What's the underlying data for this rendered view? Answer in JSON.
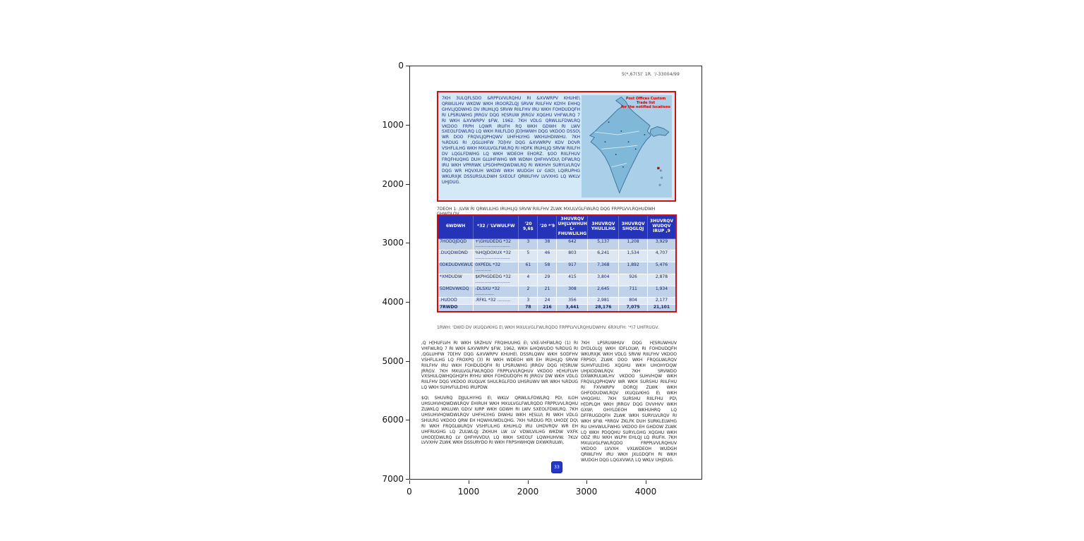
{
  "figure": {
    "yticks": [
      "0",
      "1000",
      "2000",
      "3000",
      "4000",
      "5000",
      "6000",
      "7000"
    ],
    "xticks": [
      "0",
      "1000",
      "2000",
      "3000",
      "4000"
    ]
  },
  "colors": {
    "accent_red": "#cc1111",
    "table_header_blue": "#2433b8",
    "row_blue_dark": "#bfd2ea",
    "row_blue_light": "#dde7f4",
    "notice_bg": "#d3e9f8",
    "map_sea": "#a9d0e8",
    "map_land": "#7fb8d9",
    "stamp_blue": "#2438c8"
  },
  "page": {
    "header_right": "5(*,67(5(' 1R. '/-33004/99",
    "notice_box": {
      "text": "7KH 3ULQFLSDO &RPPLVVLRQHU RI &XVWRPV KHUHE\\ QRWLILHV WKDW WKH IROORZLQJ SRVW RIILFHV KDYH EHHQ GHVLJQDWHG DV IRUHLJQ SRVW RIILFHV IRU WKH FOHDUDQFH RI LPSRUWHG JRRGV DQG H[SRUW JRRGV XQGHU VHFWLRQ 7 RI WKH &XVWRPV $FW, 1962. 7KH VDLG QRWLILFDWLRQ VKDOO FRPH LQWR IRUFH RQ WKH GDWH RI LWV SXEOLFDWLRQ LQ WKH RIILFLDO JD]HWWH DQG VKDOO DSSO\\ WR DOO FRQVLJQPHQWV UHFHLYHG WKHUHDIWHU. 7KH %RDUG RI ,QGLUHFW 7D[HV DQG &XVWRPV KDV DOVR VSHFLILHG WKH MXULVGLFWLRQ RI HDFK IRUHLJQ SRVW RIILFH DV LQGLFDWHG LQ WKH WDEOH EHORZ. $OO RIILFHUV FRQFHUQHG DUH GLUHFWHG WR WDNH QHFHVVDU\\ DFWLRQ IRU WKH VPRRWK LPSOHPHQWDWLRQ RI WKHVH SURYLVLRQV DQG WR HQVXUH WKDW WKH WUDGH LV GXO\\ LQIRUPHG WKURXJK DSSURSULDWH SXEOLF QRWLFHV LVVXHG LQ WKLV UHJDUG."
    },
    "map": {
      "caption_line1": "Post Offices Custom Trade list",
      "caption_line2": "for the notified locations"
    },
    "table_caption": "7DEOH 1: /LVW RI QRWLILHG IRUHLJQ SRVW RIILFHV ZLWK MXULVGLFWLRQ DQG FRPPLVVLRQHUDWH GHWDLOV",
    "table": {
      "headers": [
        "6WDWH",
        "*32 / 'LVWULFW",
        "'20 9,6$",
        "'20 *'9",
        "3HUVRQV UHJLVWHUHG L-FHUWLILHG",
        "3HUVRQV YHULILHG",
        "3HUVRQV SHQGLQJ",
        "3HUVRQV WUDQV IRUP ,9"
      ],
      "rows": [
        {
          "cells": [
            "7HODQJDQD",
            "+\\GHUDEDG *32 ..........................",
            "3",
            "38",
            "642",
            "5,137",
            "1,208",
            "3,929"
          ],
          "total": false
        },
        {
          "cells": [
            ".DUQDWDND",
            "%HQJDOXUX *32 ..........................",
            "5",
            "46",
            "803",
            "6,241",
            "1,534",
            "4,707"
          ],
          "total": false
        },
        {
          "cells": [
            "0DKDUDVKWUD",
            "0XPEDL *32 ............",
            "61",
            "58",
            "917",
            "7,368",
            "1,892",
            "5,476"
          ],
          "total": false
        },
        {
          "cells": [
            "*XMDUDW",
            "$KPHGDEDG *32 ..........................",
            "4",
            "29",
            "415",
            "3,804",
            "926",
            "2,878"
          ],
          "total": false
        },
        {
          "cells": [
            "5DMDVWKDQ",
            "-DLSXU *32 ..............",
            "2",
            "21",
            "308",
            "2,645",
            "711",
            "1,934"
          ],
          "total": false
        },
        {
          "cells": [
            ".HUDOD",
            ".RFKL *32 ..........",
            "3",
            "24",
            "356",
            "2,981",
            "804",
            "2,177"
          ],
          "total": false
        },
        {
          "cells": [
            "7RWDO",
            "",
            "78",
            "216",
            "3,441",
            "28,176",
            "7,075",
            "21,101"
          ],
          "total": true
        }
      ]
    },
    "table_footnote": "1RWH: 'DWD DV IXUQLVKHG E\\ WKH MXULVGLFWLRQDO FRPPLVVLRQHUDWHV. 6RXUFH: '*)7 UHFRUGV.",
    "body": {
      "left_par1": ",Q H[HUFLVH RI WKH SRZHUV FRQIHUUHG E\\ VXE-VHFWLRQ (1) RI VHFWLRQ 7 RI WKH &XVWRPV $FW, 1962, WKH &HQWUDO %RDUG RI ,QGLUHFW 7D[HV DQG &XVWRPV KHUHE\\ DSSRLQWV WKH SODFHV VSHFLILHG LQ FROXPQ (3) RI WKH WDEOH WR EH IRUHLJQ SRVW RIILFHV IRU WKH FOHDUDQFH RI LPSRUWHG JRRGV DQG H[SRUW JRRGV. 7KH MXULVGLFWLRQDO FRPPLVVLRQHUV VKDOO H[HUFLVH VXSHULQWHQGHQFH RYHU WKH FOHDUDQFH RI JRRGV DW WKH VDLG RIILFHV DQG VKDOO IXUQLVK SHULRGLFDO UHSRUWV WR WKH %RDUG LQ WKH SUHVFULEHG IRUPDW.",
      "left_par2": "$Q\\ SHUVRQ DJJULHYHG E\\ WKLV QRWLILFDWLRQ PD\\ ILOH UHSUHVHQWDWLRQV EHIRUH WKH MXULVGLFWLRQDO FRPPLVVLRQHU ZLWKLQ WKLUW\\ GD\\V IURP WKH GDWH RI LWV SXEOLFDWLRQ. 7KH UHSUHVHQWDWLRQV UHFHLYHG DIWHU WKH H[SLU\\ RI WKH VDLG SHULRG VKDOO QRW EH HQWHUWDLQHG. 7KH %RDUG PD\\ UHOD[ DQ\\ RI WKH FRQGLWLRQV VSHFLILHG KHUHLQ IRU UHDVRQV WR EH UHFRUGHG LQ ZULWLQJ ZKHUH LW LV VDWLVILHG WKDW VXFK UHOD[DWLRQ LV QHFHVVDU\\ LQ WKH SXEOLF LQWHUHVW. 7KLV LVVXHV ZLWK WKH DSSURYDO RI WKH FRPSHWHQW DXWKRULW\\.",
      "right_par": "7KH LPSRUWHUV DQG H[SRUWHUV DYDLOLQJ WKH IDFLOLW\\ RI FOHDUDQFH WKURXJK WKH VDLG SRVW RIILFHV VKDOO FRPSO\\ ZLWK DOO WKH FRQGLWLRQV SUHVFULEHG XQGHU WKH UHOHYDQW UHJXODWLRQV. 7KH SRVWDO DXWKRULWLHV VKDOO SUHVHQW WKH FRQVLJQPHQWV WR WKH SURSHU RIILFHU RI FXVWRPV DORQJ ZLWK WKH GHFODUDWLRQV IXUQLVKHG E\\ WKH VHQGHU. 7KH SURSHU RIILFHU PD\\ H[DPLQH WKH JRRGV DQG DVVHVV WKH GXW\\ OHYLDEOH WKHUHRQ LQ DFFRUGDQFH ZLWK WKH SURYLVLRQV RI WKH $FW. *RRGV ZKLFK DUH SURKLELWHG RU UHVWULFWHG VKDOO EH GHDOW ZLWK LQ WKH PDQQHU SURYLGHG XQGHU WKH ODZ IRU WKH WLPH EHLQJ LQ IRUFH. 7KH MXULVGLFWLRQDO FRPPLVVLRQHUV VKDOO LVVXH VXLWDEOH WUDGH QRWLFHV IRU WKH JXLGDQFH RI WKH WUDGH DQG LQGXVWU\\ LQ WKLV UHJDUG."
    },
    "stamp_label": "33"
  }
}
